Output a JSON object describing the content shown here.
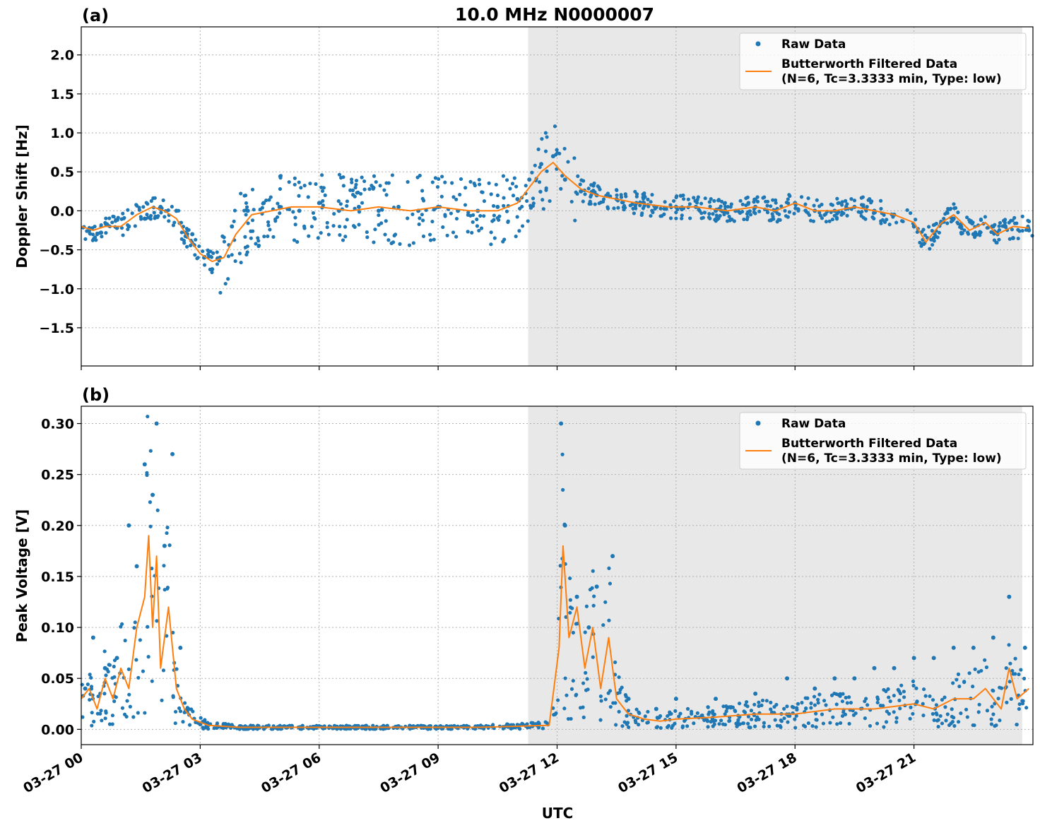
{
  "figure_title": "10.0 MHz N0000007",
  "colors": {
    "raw": "#1f77b4",
    "filtered": "#ff7f0e",
    "shade": "#e8e8e8",
    "grid": "#b0b0b0"
  },
  "xaxis": {
    "label": "UTC",
    "range_hours": [
      0,
      24
    ],
    "ticks": [
      {
        "hour": 0,
        "label": "03-27 00"
      },
      {
        "hour": 3,
        "label": "03-27 03"
      },
      {
        "hour": 6,
        "label": "03-27 06"
      },
      {
        "hour": 9,
        "label": "03-27 09"
      },
      {
        "hour": 12,
        "label": "03-27 12"
      },
      {
        "hour": 15,
        "label": "03-27 15"
      },
      {
        "hour": 18,
        "label": "03-27 18"
      },
      {
        "hour": 21,
        "label": "03-27 21"
      }
    ]
  },
  "shaded_interval_hours": [
    11.27,
    23.73
  ],
  "legend": {
    "raw_label": "Raw Data",
    "filtered_label_line1": "Butterworth Filtered Data",
    "filtered_label_line2": "(N=6, Tc=3.3333 min, Type: low)"
  },
  "chart_data": [
    {
      "panel": "(a)",
      "type": "scatter",
      "ylabel": "Doppler Shift [Hz]",
      "ylim": [
        -1.99,
        2.36
      ],
      "yticks": [
        {
          "value": 2.0,
          "label": "2.0"
        },
        {
          "value": 1.5,
          "label": "1.5"
        },
        {
          "value": 1.0,
          "label": "1.0"
        },
        {
          "value": 0.5,
          "label": "0.5"
        },
        {
          "value": 0.0,
          "label": "0.0"
        },
        {
          "value": -0.5,
          "label": "−0.5"
        },
        {
          "value": -1.0,
          "label": "−1.0"
        },
        {
          "value": -1.5,
          "label": "−1.5"
        }
      ],
      "series": [
        {
          "name": "Raw Data",
          "kind": "points",
          "hours": [
            0.2,
            0.5,
            0.9,
            1.2,
            1.6,
            2.0,
            2.4,
            2.8,
            3.1,
            3.3,
            3.5,
            3.8,
            4.2,
            4.6,
            5.0,
            5.5,
            6.0,
            6.5,
            7.0,
            7.5,
            8.0,
            8.5,
            9.0,
            9.5,
            10.0,
            10.5,
            11.0,
            11.3,
            11.6,
            11.9,
            12.2,
            12.6,
            13.0,
            13.5,
            14.0,
            14.5,
            15.0,
            15.5,
            16.0,
            16.5,
            17.0,
            17.5,
            18.0,
            18.5,
            19.0,
            19.5,
            20.0,
            20.5,
            21.0,
            21.5,
            22.0,
            22.5,
            23.0,
            23.5,
            23.9
          ],
          "values": [
            -0.25,
            -0.28,
            -0.22,
            -0.2,
            -0.1,
            0.05,
            0.0,
            -0.3,
            -0.6,
            -0.75,
            -0.6,
            -0.2,
            0.0,
            0.1,
            0.05,
            0.0,
            0.1,
            0.0,
            0.05,
            0.0,
            0.05,
            0.0,
            0.05,
            0.0,
            0.0,
            0.05,
            0.15,
            0.4,
            0.6,
            0.7,
            0.4,
            0.25,
            0.2,
            0.15,
            0.1,
            0.05,
            0.05,
            0.05,
            0.0,
            0.0,
            0.05,
            0.0,
            0.1,
            0.0,
            0.0,
            0.05,
            0.0,
            -0.05,
            -0.2,
            -0.35,
            -0.1,
            -0.3,
            -0.2,
            -0.35,
            -0.25
          ]
        },
        {
          "name": "Butterworth Filtered Data",
          "kind": "line",
          "hours": [
            0.0,
            0.3,
            0.6,
            1.0,
            1.4,
            1.8,
            2.1,
            2.4,
            2.7,
            3.0,
            3.3,
            3.6,
            3.9,
            4.3,
            4.8,
            5.3,
            6.0,
            6.8,
            7.5,
            8.3,
            9.0,
            9.8,
            10.5,
            11.0,
            11.3,
            11.6,
            11.9,
            12.2,
            12.6,
            13.0,
            13.5,
            14.0,
            14.8,
            15.5,
            16.3,
            17.0,
            17.5,
            18.0,
            18.5,
            19.0,
            19.5,
            20.0,
            20.5,
            21.0,
            21.3,
            21.7,
            22.0,
            22.4,
            22.8,
            23.1,
            23.5,
            23.9
          ],
          "values": [
            -0.2,
            -0.25,
            -0.2,
            -0.2,
            -0.05,
            0.05,
            0.0,
            -0.1,
            -0.35,
            -0.55,
            -0.65,
            -0.6,
            -0.3,
            -0.05,
            0.0,
            0.05,
            0.05,
            0.0,
            0.05,
            0.0,
            0.05,
            0.0,
            0.0,
            0.1,
            0.3,
            0.5,
            0.62,
            0.45,
            0.28,
            0.2,
            0.15,
            0.1,
            0.05,
            0.05,
            0.0,
            0.05,
            0.0,
            0.1,
            0.0,
            0.0,
            0.05,
            0.0,
            -0.05,
            -0.15,
            -0.4,
            -0.15,
            -0.05,
            -0.25,
            -0.15,
            -0.3,
            -0.2,
            -0.22
          ]
        }
      ]
    },
    {
      "panel": "(b)",
      "type": "scatter",
      "ylabel": "Peak Voltage [V]",
      "ylim": [
        -0.015,
        0.317
      ],
      "yticks": [
        {
          "value": 0.3,
          "label": "0.30"
        },
        {
          "value": 0.25,
          "label": "0.25"
        },
        {
          "value": 0.2,
          "label": "0.20"
        },
        {
          "value": 0.15,
          "label": "0.15"
        },
        {
          "value": 0.1,
          "label": "0.10"
        },
        {
          "value": 0.05,
          "label": "0.05"
        },
        {
          "value": 0.0,
          "label": "0.00"
        }
      ],
      "series": [
        {
          "name": "Raw Data",
          "kind": "points",
          "hours": [
            0.1,
            0.3,
            0.6,
            0.9,
            1.2,
            1.4,
            1.6,
            1.8,
            1.9,
            2.1,
            2.3,
            2.5,
            2.7,
            3.0,
            4.0,
            6.0,
            8.0,
            10.0,
            11.5,
            12.1,
            12.2,
            12.5,
            12.8,
            13.0,
            13.4,
            13.8,
            14.5,
            15.0,
            16.0,
            17.0,
            17.8,
            18.5,
            19.0,
            19.5,
            20.0,
            20.5,
            21.0,
            21.5,
            22.0,
            22.5,
            23.0,
            23.4,
            23.8
          ],
          "values": [
            0.04,
            0.09,
            0.06,
            0.07,
            0.2,
            0.16,
            0.26,
            0.23,
            0.3,
            0.18,
            0.27,
            0.08,
            0.02,
            0.005,
            0.003,
            0.003,
            0.003,
            0.003,
            0.004,
            0.3,
            0.2,
            0.13,
            0.1,
            0.14,
            0.17,
            0.03,
            0.02,
            0.03,
            0.03,
            0.035,
            0.05,
            0.04,
            0.05,
            0.05,
            0.06,
            0.06,
            0.07,
            0.07,
            0.08,
            0.08,
            0.09,
            0.13,
            0.08
          ]
        },
        {
          "name": "Butterworth Filtered Data",
          "kind": "line",
          "hours": [
            0.0,
            0.2,
            0.4,
            0.6,
            0.8,
            1.0,
            1.2,
            1.4,
            1.6,
            1.7,
            1.8,
            1.9,
            2.0,
            2.2,
            2.4,
            2.6,
            2.8,
            3.2,
            4.0,
            6.0,
            8.0,
            10.0,
            11.0,
            11.8,
            12.05,
            12.15,
            12.3,
            12.5,
            12.7,
            12.9,
            13.1,
            13.3,
            13.5,
            13.8,
            14.2,
            14.6,
            15.0,
            16.0,
            17.0,
            18.0,
            19.0,
            20.0,
            21.0,
            21.5,
            22.0,
            22.5,
            22.8,
            23.0,
            23.2,
            23.4,
            23.6,
            23.9
          ],
          "values": [
            0.03,
            0.04,
            0.02,
            0.05,
            0.03,
            0.06,
            0.04,
            0.1,
            0.13,
            0.19,
            0.1,
            0.17,
            0.06,
            0.12,
            0.04,
            0.02,
            0.01,
            0.004,
            0.002,
            0.002,
            0.002,
            0.002,
            0.003,
            0.004,
            0.08,
            0.18,
            0.09,
            0.12,
            0.06,
            0.1,
            0.04,
            0.09,
            0.03,
            0.015,
            0.01,
            0.008,
            0.01,
            0.012,
            0.015,
            0.015,
            0.02,
            0.02,
            0.025,
            0.02,
            0.03,
            0.03,
            0.04,
            0.03,
            0.02,
            0.06,
            0.03,
            0.04
          ]
        }
      ]
    }
  ]
}
